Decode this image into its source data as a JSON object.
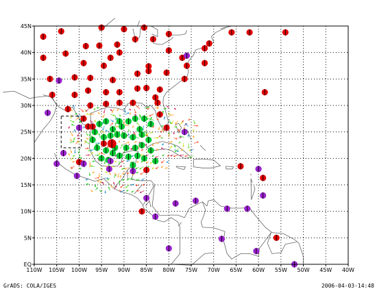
{
  "map": {
    "lon_min": -110,
    "lon_max": -40,
    "lat_min": 0,
    "lat_max": 45,
    "x_ticks": [
      {
        "lon": -110,
        "label": "110W"
      },
      {
        "lon": -105,
        "label": "105W"
      },
      {
        "lon": -100,
        "label": "100W"
      },
      {
        "lon": -95,
        "label": "95W"
      },
      {
        "lon": -90,
        "label": "90W"
      },
      {
        "lon": -85,
        "label": "85W"
      },
      {
        "lon": -80,
        "label": "80W"
      },
      {
        "lon": -75,
        "label": "75W"
      },
      {
        "lon": -70,
        "label": "70W"
      },
      {
        "lon": -65,
        "label": "65W"
      },
      {
        "lon": -60,
        "label": "60W"
      },
      {
        "lon": -55,
        "label": "55W"
      },
      {
        "lon": -50,
        "label": "50W"
      },
      {
        "lon": -45,
        "label": "45W"
      },
      {
        "lon": -40,
        "label": "40W"
      }
    ],
    "y_ticks": [
      {
        "lat": 0,
        "label": "EQ"
      },
      {
        "lat": 5,
        "label": "5N"
      },
      {
        "lat": 10,
        "label": "10N"
      },
      {
        "lat": 15,
        "label": "15N"
      },
      {
        "lat": 20,
        "label": "20N"
      },
      {
        "lat": 25,
        "label": "25N"
      },
      {
        "lat": 30,
        "label": "30N"
      },
      {
        "lat": 35,
        "label": "35N"
      },
      {
        "lat": 40,
        "label": "40N"
      },
      {
        "lat": 45,
        "label": "45N"
      }
    ],
    "colors": {
      "red_station": "#e00000",
      "purple_station": "#9922cc",
      "green_station": "#00cc33",
      "coast": "#666666",
      "grid": "#000000"
    },
    "box": {
      "lon_min": -104,
      "lon_max": -99.5,
      "lat_min": 22,
      "lat_max": 28
    },
    "red_stations": [
      [
        -108,
        43
      ],
      [
        -104,
        44
      ],
      [
        -95,
        44.7
      ],
      [
        -90,
        44.4
      ],
      [
        -85.5,
        44.7
      ],
      [
        -80,
        43.5
      ],
      [
        -66,
        43.8
      ],
      [
        -62,
        43.8
      ],
      [
        -54,
        43.8
      ],
      [
        -108,
        39
      ],
      [
        -103,
        39.8
      ],
      [
        -98.5,
        41.2
      ],
      [
        -95.5,
        41.3
      ],
      [
        -99,
        38
      ],
      [
        -93,
        39
      ],
      [
        -91.5,
        41.5
      ],
      [
        -91,
        40
      ],
      [
        -87.5,
        42.5
      ],
      [
        -83.5,
        42.5
      ],
      [
        -80,
        40.4
      ],
      [
        -77,
        39
      ],
      [
        -72,
        40.8
      ],
      [
        -71,
        41.7
      ],
      [
        -106.5,
        35
      ],
      [
        -101,
        35.3
      ],
      [
        -97.5,
        35.2
      ],
      [
        -94.5,
        37.5
      ],
      [
        -92.5,
        34.8
      ],
      [
        -87,
        36
      ],
      [
        -84.5,
        37.4
      ],
      [
        -84.5,
        36.5
      ],
      [
        -80.5,
        36.2
      ],
      [
        -76,
        37.5
      ],
      [
        -76.5,
        35
      ],
      [
        -72,
        38
      ],
      [
        -106,
        32
      ],
      [
        -101,
        32
      ],
      [
        -98,
        32.8
      ],
      [
        -94,
        32.5
      ],
      [
        -91,
        32.5
      ],
      [
        -87,
        33.2
      ],
      [
        -85,
        33.3
      ],
      [
        -82,
        33
      ],
      [
        -82.5,
        30.5
      ],
      [
        -102.5,
        29.3
      ],
      [
        -97.5,
        30
      ],
      [
        -94,
        30.3
      ],
      [
        -91,
        30.5
      ],
      [
        -88,
        30.5
      ],
      [
        -83,
        31.5
      ],
      [
        -82,
        28.3
      ],
      [
        -99,
        27.5
      ],
      [
        -97,
        26
      ],
      [
        -98,
        26
      ],
      [
        -80.5,
        25.8
      ],
      [
        -94.5,
        22.8
      ],
      [
        -85,
        17.8
      ],
      [
        -64,
        18.5
      ],
      [
        -59,
        16.3
      ],
      [
        -86,
        10
      ],
      [
        -56,
        5
      ],
      [
        -100,
        19.3
      ],
      [
        -58.6,
        32.5
      ]
    ],
    "purple_stations": [
      [
        -107,
        28.6
      ],
      [
        -103.5,
        21
      ],
      [
        -105,
        19
      ],
      [
        -100,
        25.8
      ],
      [
        -104.5,
        34.7
      ],
      [
        -76,
        39.4
      ],
      [
        -76.5,
        25
      ],
      [
        -88,
        17.6
      ],
      [
        -85,
        12.5
      ],
      [
        -83,
        9
      ],
      [
        -78.5,
        11.5
      ],
      [
        -74,
        12
      ],
      [
        -80,
        3
      ],
      [
        -68.2,
        4.8
      ],
      [
        -67,
        10.5
      ],
      [
        -60,
        18
      ],
      [
        -59,
        13
      ],
      [
        -62.5,
        10.5
      ],
      [
        -60.5,
        2.5
      ],
      [
        -52,
        0
      ],
      [
        -100.5,
        16.7
      ],
      [
        -99,
        19
      ],
      [
        -93.3,
        18
      ],
      [
        -93,
        19.5
      ]
    ],
    "green_stations": [
      [
        -94,
        27
      ],
      [
        -92.5,
        25.5
      ],
      [
        -91,
        27
      ],
      [
        -89,
        27
      ],
      [
        -87.5,
        27.5
      ],
      [
        -85.5,
        27.5
      ],
      [
        -84,
        26.5
      ],
      [
        -96.5,
        25
      ],
      [
        -94.5,
        24
      ],
      [
        -93,
        24.3
      ],
      [
        -91.5,
        24.5
      ],
      [
        -90,
        24.3
      ],
      [
        -88,
        24
      ],
      [
        -86,
        24.5
      ],
      [
        -84.5,
        23.5
      ],
      [
        -96,
        22
      ],
      [
        -94,
        21.5
      ],
      [
        -92,
        22
      ],
      [
        -89.5,
        22
      ],
      [
        -87.5,
        22
      ],
      [
        -86,
        22.5
      ],
      [
        -84,
        21.5
      ],
      [
        -95,
        20
      ],
      [
        -93.5,
        19.7
      ],
      [
        -91,
        20.5
      ],
      [
        -87,
        20.5
      ],
      [
        -85.5,
        20
      ],
      [
        -83,
        19.5
      ],
      [
        -88,
        18.7
      ],
      [
        -97,
        23.5
      ],
      [
        -90.5,
        26
      ],
      [
        -86.5,
        25.5
      ],
      [
        -95.5,
        26.5
      ],
      [
        -92.5,
        21
      ],
      [
        -89,
        20.3
      ]
    ],
    "big_red": [
      -92.7,
      22.8
    ]
  },
  "footer": {
    "left": "GrADS: COLA/IGES",
    "right": "2006-04-03-14:48"
  }
}
